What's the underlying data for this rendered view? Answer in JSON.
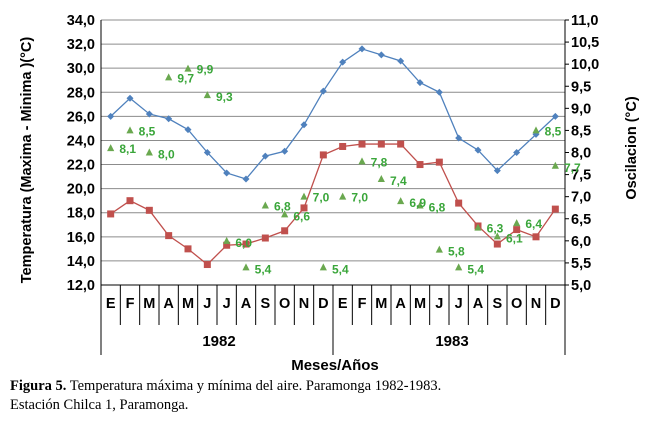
{
  "chart_data": {
    "type": "line",
    "categories": [
      "E",
      "F",
      "M",
      "A",
      "M",
      "J",
      "J",
      "A",
      "S",
      "O",
      "N",
      "D",
      "E",
      "F",
      "M",
      "A",
      "M",
      "J",
      "J",
      "A",
      "S",
      "O",
      "N",
      "D"
    ],
    "groups": [
      {
        "label": "1982",
        "start": 0,
        "end": 11
      },
      {
        "label": "1983",
        "start": 12,
        "end": 23
      }
    ],
    "xlabel": "Meses/Años",
    "ylabel": "Temperatura (Maxima - Minima )(°C)",
    "ylabel_right": "Oscilacion (°C)",
    "ylim": [
      12,
      34
    ],
    "yticks": [
      "12,0",
      "14,0",
      "16,0",
      "18,0",
      "20,0",
      "22,0",
      "24,0",
      "26,0",
      "28,0",
      "30,0",
      "32,0",
      "34,0"
    ],
    "ylim_right": [
      5,
      11
    ],
    "yticks_right": [
      "5,0",
      "5,5",
      "6,0",
      "6,5",
      "7,0",
      "7,5",
      "8,0",
      "8,5",
      "9,0",
      "9,5",
      "10,0",
      "10,5",
      "11,0"
    ],
    "grid": true,
    "series": [
      {
        "key": "max",
        "axis": "left",
        "color": "#4f81bd",
        "marker": "diamond",
        "values": [
          26.0,
          27.5,
          26.2,
          25.8,
          24.9,
          23.0,
          21.3,
          20.8,
          22.7,
          23.1,
          25.3,
          28.1,
          30.5,
          31.6,
          31.1,
          30.6,
          28.8,
          28.0,
          24.2,
          23.2,
          21.5,
          23.0,
          24.5,
          26.0
        ]
      },
      {
        "key": "min",
        "axis": "left",
        "color": "#c0504d",
        "marker": "square",
        "values": [
          17.9,
          19.0,
          18.2,
          16.1,
          15.0,
          13.7,
          15.3,
          15.4,
          15.9,
          16.5,
          18.4,
          22.8,
          23.5,
          23.7,
          23.7,
          23.7,
          22.0,
          22.2,
          18.8,
          16.9,
          15.4,
          16.6,
          16.0,
          18.3
        ]
      },
      {
        "key": "osc",
        "axis": "right",
        "color": "#6aa84f",
        "marker": "triangle",
        "label_color": "#3aa63a",
        "values": [
          8.1,
          8.5,
          8.0,
          9.7,
          9.9,
          9.3,
          6.0,
          5.4,
          6.8,
          6.6,
          7.0,
          5.4,
          7.0,
          7.8,
          7.4,
          6.9,
          6.8,
          5.8,
          5.4,
          6.3,
          6.1,
          6.4,
          8.5,
          7.7
        ],
        "labels": [
          "8,1",
          "8,5",
          "8,0",
          "9,7",
          "9,9",
          "9,3",
          "6,0",
          "5,4",
          "6,8",
          "6,6",
          "7,0",
          "5,4",
          "7,0",
          "7,8",
          "7,4",
          "6,9",
          "6,8",
          "5,8",
          "5,4",
          "6,3",
          "6,1",
          "6,4",
          "8,5",
          "7,7"
        ]
      }
    ]
  },
  "caption": {
    "figure_label": "Figura 5.",
    "line1": " Temperatura máxima y mínima del aire. Paramonga 1982-1983.",
    "line2": "Estación Chilca 1, Paramonga."
  }
}
